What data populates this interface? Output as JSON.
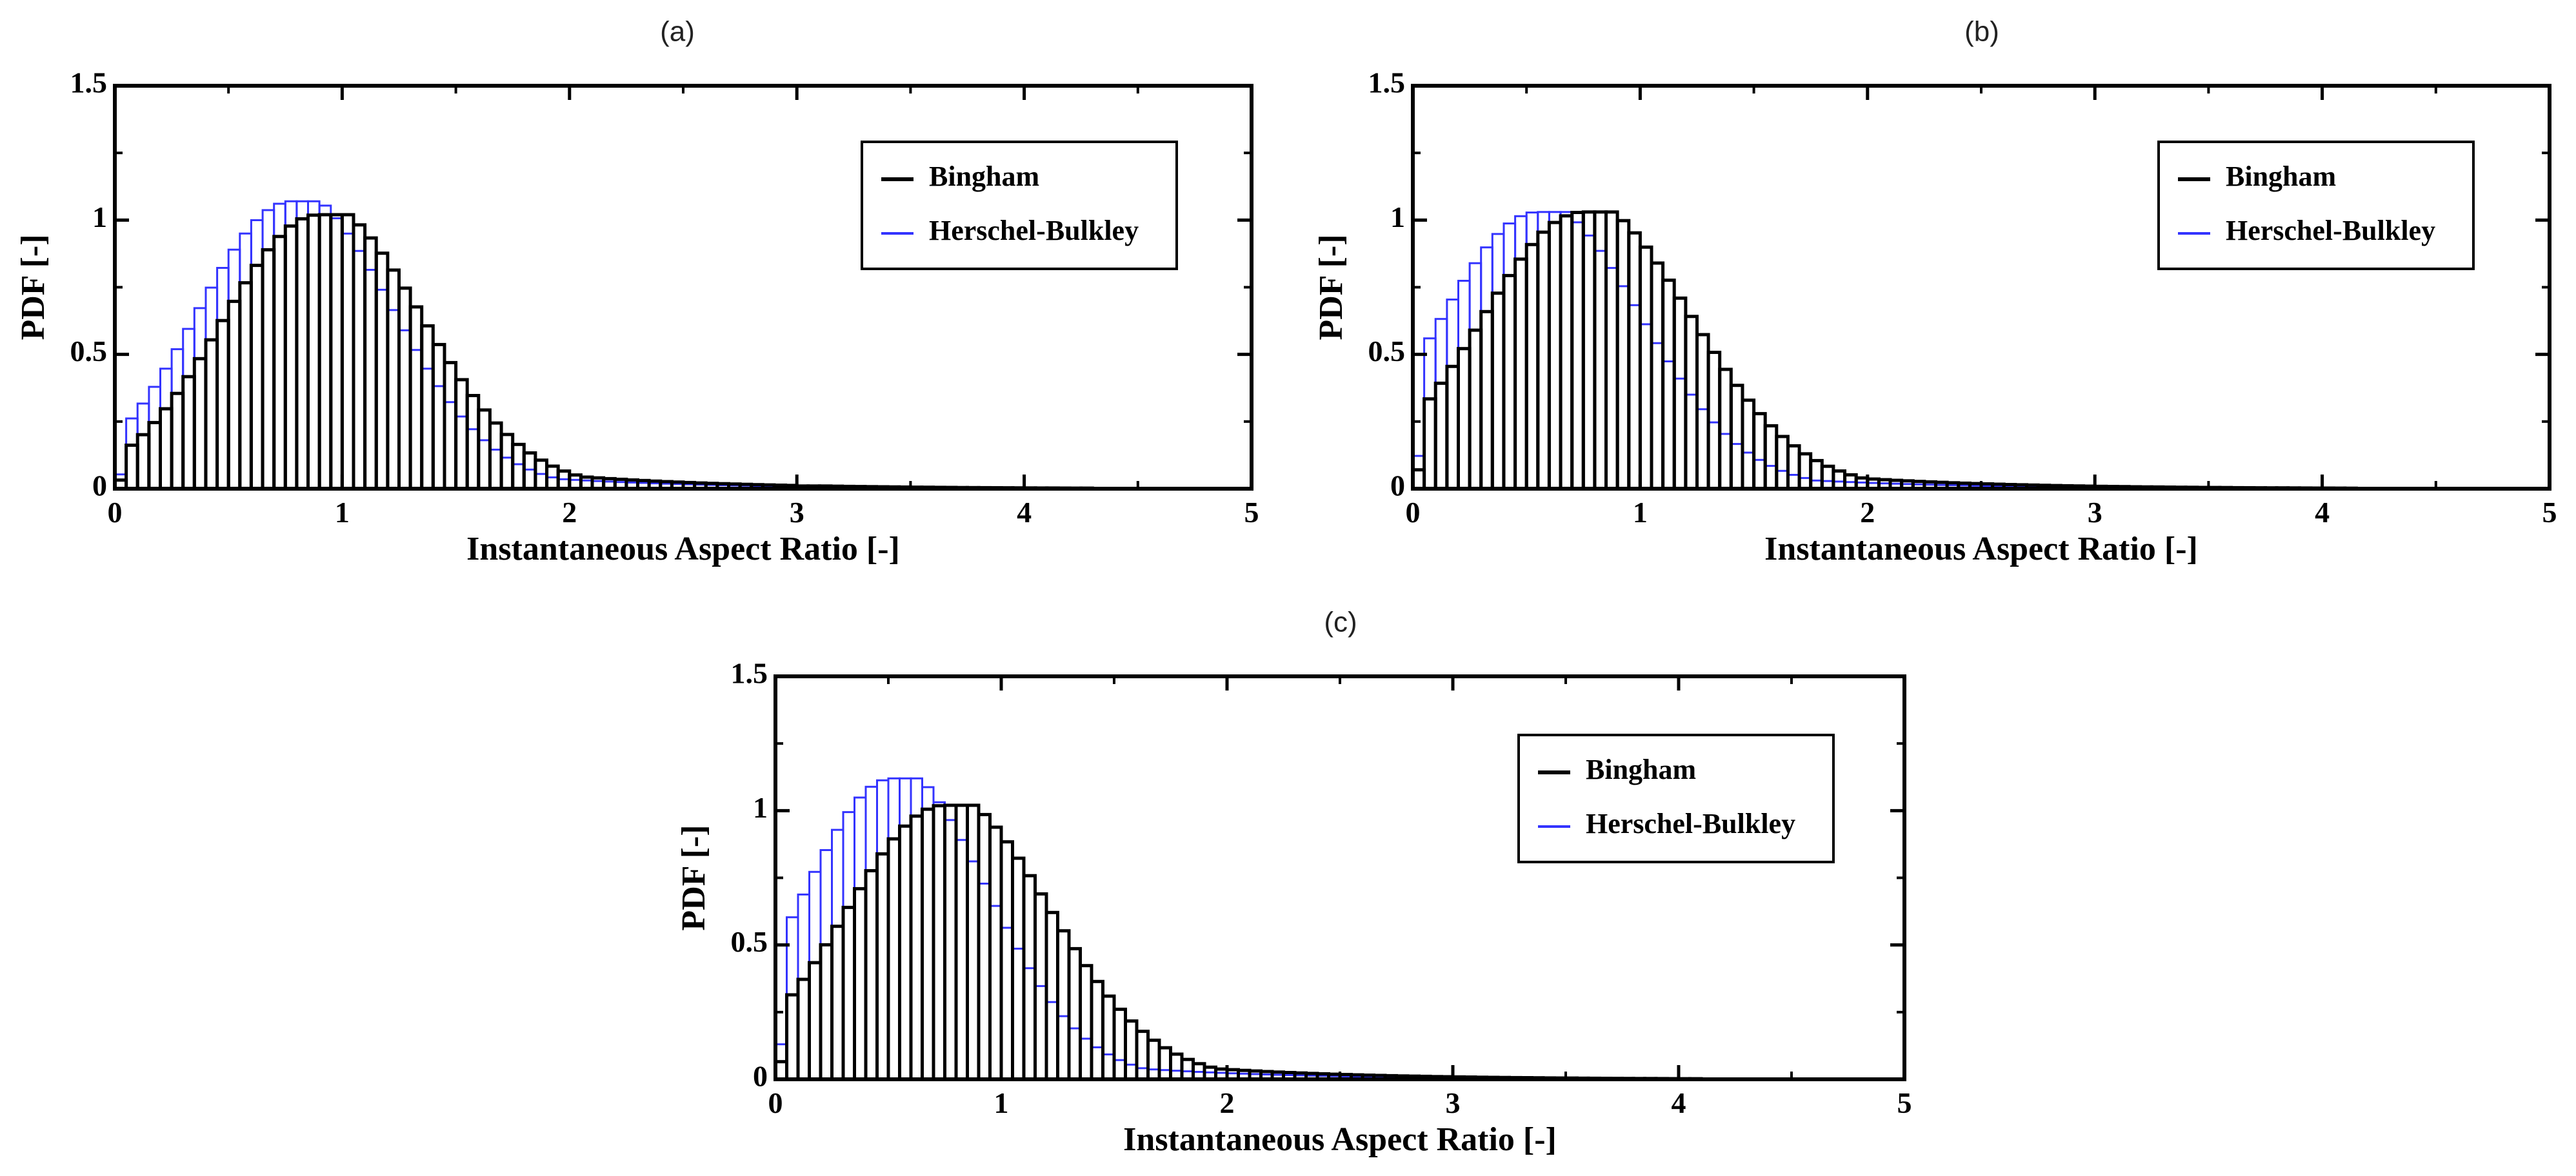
{
  "colors": {
    "bingham": "#000000",
    "herschel_bulkley": "#3333ff",
    "background": "#ffffff"
  },
  "chart_data": [
    {
      "type": "histogram",
      "panel_label": "(a)",
      "xlabel": "Instantaneous Aspect Ratio [-]",
      "ylabel": "PDF [-]",
      "xlim": [
        0,
        5
      ],
      "ylim": [
        0,
        1.5
      ],
      "xticks": [
        "0",
        "1",
        "2",
        "3",
        "4",
        "5"
      ],
      "yticks": [
        "0",
        "0.5",
        "1",
        "1.5"
      ],
      "legend_position": "top-right",
      "bin_width": 0.05,
      "series": [
        {
          "name": "Bingham",
          "color": "#000000",
          "peak": 1.02,
          "mode": 0.9,
          "sigma": 0.43,
          "tail": 0.18,
          "zero_after": 3.0
        },
        {
          "name": "Herschel-Bulkley",
          "color": "#3333ff",
          "peak": 1.07,
          "mode": 0.78,
          "sigma": 0.42,
          "tail": 0.14,
          "zero_after": 2.8
        }
      ]
    },
    {
      "type": "histogram",
      "panel_label": "(b)",
      "xlabel": "Instantaneous Aspect Ratio [-]",
      "ylabel": "PDF [-]",
      "xlim": [
        0,
        5
      ],
      "ylim": [
        0,
        1.5
      ],
      "xticks": [
        "0",
        "1",
        "2",
        "3",
        "4",
        "5"
      ],
      "yticks": [
        "0",
        "0.5",
        "1",
        "1.5"
      ],
      "legend_position": "top-right",
      "bin_width": 0.05,
      "series": [
        {
          "name": "Bingham",
          "color": "#000000",
          "peak": 1.03,
          "mode": 0.75,
          "sigma": 0.45,
          "tail": 0.17,
          "zero_after": 3.0
        },
        {
          "name": "Herschel-Bulkley",
          "color": "#3333ff",
          "peak": 1.03,
          "mode": 0.55,
          "sigma": 0.43,
          "tail": 0.13,
          "zero_after": 2.6
        }
      ]
    },
    {
      "type": "histogram",
      "panel_label": "(c)",
      "xlabel": "Instantaneous Aspect Ratio [-]",
      "ylabel": "PDF [-]",
      "xlim": [
        0,
        5
      ],
      "ylim": [
        0,
        1.5
      ],
      "xticks": [
        "0",
        "1",
        "2",
        "3",
        "4",
        "5"
      ],
      "yticks": [
        "0",
        "0.5",
        "1",
        "1.5"
      ],
      "legend_position": "top-right",
      "bin_width": 0.05,
      "series": [
        {
          "name": "Bingham",
          "color": "#000000",
          "peak": 1.02,
          "mode": 0.75,
          "sigma": 0.44,
          "tail": 0.17,
          "zero_after": 3.0
        },
        {
          "name": "Herschel-Bulkley",
          "color": "#3333ff",
          "peak": 1.12,
          "mode": 0.52,
          "sigma": 0.4,
          "tail": 0.13,
          "zero_after": 2.6
        }
      ]
    }
  ]
}
